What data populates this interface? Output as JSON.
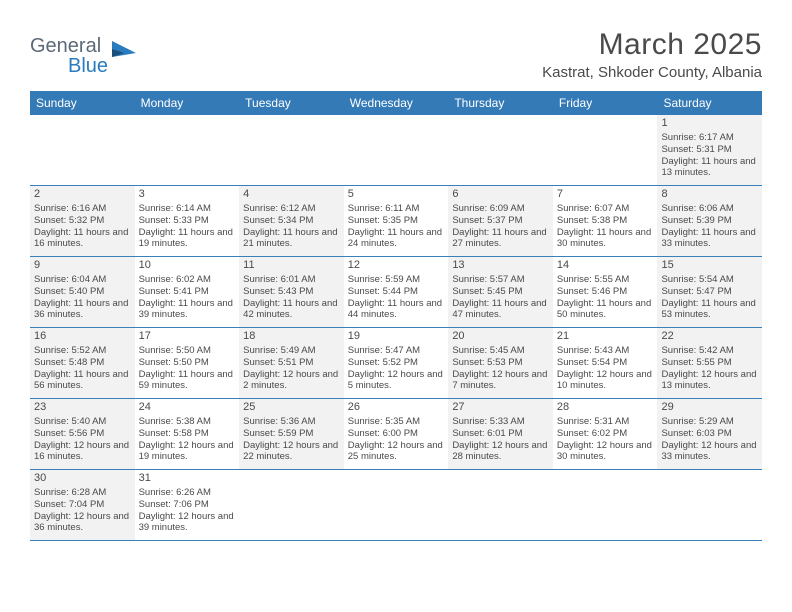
{
  "logo": {
    "text1": "General",
    "text2": "Blue"
  },
  "title": "March 2025",
  "location": "Kastrat, Shkoder County, Albania",
  "colors": {
    "header_bg": "#337ab7",
    "row_border": "#3a7fb8",
    "odd_cell": "#f2f2f2",
    "even_cell": "#ffffff",
    "text": "#4a4a4a",
    "logo_gray": "#5b6a78",
    "logo_blue": "#2a7bbf"
  },
  "weekdays": [
    "Sunday",
    "Monday",
    "Tuesday",
    "Wednesday",
    "Thursday",
    "Friday",
    "Saturday"
  ],
  "weeks": [
    [
      {
        "empty": true
      },
      {
        "empty": true
      },
      {
        "empty": true
      },
      {
        "empty": true
      },
      {
        "empty": true
      },
      {
        "empty": true
      },
      {
        "num": "1",
        "sunrise": "Sunrise: 6:17 AM",
        "sunset": "Sunset: 5:31 PM",
        "daylight": "Daylight: 11 hours and 13 minutes."
      }
    ],
    [
      {
        "num": "2",
        "sunrise": "Sunrise: 6:16 AM",
        "sunset": "Sunset: 5:32 PM",
        "daylight": "Daylight: 11 hours and 16 minutes."
      },
      {
        "num": "3",
        "sunrise": "Sunrise: 6:14 AM",
        "sunset": "Sunset: 5:33 PM",
        "daylight": "Daylight: 11 hours and 19 minutes."
      },
      {
        "num": "4",
        "sunrise": "Sunrise: 6:12 AM",
        "sunset": "Sunset: 5:34 PM",
        "daylight": "Daylight: 11 hours and 21 minutes."
      },
      {
        "num": "5",
        "sunrise": "Sunrise: 6:11 AM",
        "sunset": "Sunset: 5:35 PM",
        "daylight": "Daylight: 11 hours and 24 minutes."
      },
      {
        "num": "6",
        "sunrise": "Sunrise: 6:09 AM",
        "sunset": "Sunset: 5:37 PM",
        "daylight": "Daylight: 11 hours and 27 minutes."
      },
      {
        "num": "7",
        "sunrise": "Sunrise: 6:07 AM",
        "sunset": "Sunset: 5:38 PM",
        "daylight": "Daylight: 11 hours and 30 minutes."
      },
      {
        "num": "8",
        "sunrise": "Sunrise: 6:06 AM",
        "sunset": "Sunset: 5:39 PM",
        "daylight": "Daylight: 11 hours and 33 minutes."
      }
    ],
    [
      {
        "num": "9",
        "sunrise": "Sunrise: 6:04 AM",
        "sunset": "Sunset: 5:40 PM",
        "daylight": "Daylight: 11 hours and 36 minutes."
      },
      {
        "num": "10",
        "sunrise": "Sunrise: 6:02 AM",
        "sunset": "Sunset: 5:41 PM",
        "daylight": "Daylight: 11 hours and 39 minutes."
      },
      {
        "num": "11",
        "sunrise": "Sunrise: 6:01 AM",
        "sunset": "Sunset: 5:43 PM",
        "daylight": "Daylight: 11 hours and 42 minutes."
      },
      {
        "num": "12",
        "sunrise": "Sunrise: 5:59 AM",
        "sunset": "Sunset: 5:44 PM",
        "daylight": "Daylight: 11 hours and 44 minutes."
      },
      {
        "num": "13",
        "sunrise": "Sunrise: 5:57 AM",
        "sunset": "Sunset: 5:45 PM",
        "daylight": "Daylight: 11 hours and 47 minutes."
      },
      {
        "num": "14",
        "sunrise": "Sunrise: 5:55 AM",
        "sunset": "Sunset: 5:46 PM",
        "daylight": "Daylight: 11 hours and 50 minutes."
      },
      {
        "num": "15",
        "sunrise": "Sunrise: 5:54 AM",
        "sunset": "Sunset: 5:47 PM",
        "daylight": "Daylight: 11 hours and 53 minutes."
      }
    ],
    [
      {
        "num": "16",
        "sunrise": "Sunrise: 5:52 AM",
        "sunset": "Sunset: 5:48 PM",
        "daylight": "Daylight: 11 hours and 56 minutes."
      },
      {
        "num": "17",
        "sunrise": "Sunrise: 5:50 AM",
        "sunset": "Sunset: 5:50 PM",
        "daylight": "Daylight: 11 hours and 59 minutes."
      },
      {
        "num": "18",
        "sunrise": "Sunrise: 5:49 AM",
        "sunset": "Sunset: 5:51 PM",
        "daylight": "Daylight: 12 hours and 2 minutes."
      },
      {
        "num": "19",
        "sunrise": "Sunrise: 5:47 AM",
        "sunset": "Sunset: 5:52 PM",
        "daylight": "Daylight: 12 hours and 5 minutes."
      },
      {
        "num": "20",
        "sunrise": "Sunrise: 5:45 AM",
        "sunset": "Sunset: 5:53 PM",
        "daylight": "Daylight: 12 hours and 7 minutes."
      },
      {
        "num": "21",
        "sunrise": "Sunrise: 5:43 AM",
        "sunset": "Sunset: 5:54 PM",
        "daylight": "Daylight: 12 hours and 10 minutes."
      },
      {
        "num": "22",
        "sunrise": "Sunrise: 5:42 AM",
        "sunset": "Sunset: 5:55 PM",
        "daylight": "Daylight: 12 hours and 13 minutes."
      }
    ],
    [
      {
        "num": "23",
        "sunrise": "Sunrise: 5:40 AM",
        "sunset": "Sunset: 5:56 PM",
        "daylight": "Daylight: 12 hours and 16 minutes."
      },
      {
        "num": "24",
        "sunrise": "Sunrise: 5:38 AM",
        "sunset": "Sunset: 5:58 PM",
        "daylight": "Daylight: 12 hours and 19 minutes."
      },
      {
        "num": "25",
        "sunrise": "Sunrise: 5:36 AM",
        "sunset": "Sunset: 5:59 PM",
        "daylight": "Daylight: 12 hours and 22 minutes."
      },
      {
        "num": "26",
        "sunrise": "Sunrise: 5:35 AM",
        "sunset": "Sunset: 6:00 PM",
        "daylight": "Daylight: 12 hours and 25 minutes."
      },
      {
        "num": "27",
        "sunrise": "Sunrise: 5:33 AM",
        "sunset": "Sunset: 6:01 PM",
        "daylight": "Daylight: 12 hours and 28 minutes."
      },
      {
        "num": "28",
        "sunrise": "Sunrise: 5:31 AM",
        "sunset": "Sunset: 6:02 PM",
        "daylight": "Daylight: 12 hours and 30 minutes."
      },
      {
        "num": "29",
        "sunrise": "Sunrise: 5:29 AM",
        "sunset": "Sunset: 6:03 PM",
        "daylight": "Daylight: 12 hours and 33 minutes."
      }
    ],
    [
      {
        "num": "30",
        "sunrise": "Sunrise: 6:28 AM",
        "sunset": "Sunset: 7:04 PM",
        "daylight": "Daylight: 12 hours and 36 minutes."
      },
      {
        "num": "31",
        "sunrise": "Sunrise: 6:26 AM",
        "sunset": "Sunset: 7:06 PM",
        "daylight": "Daylight: 12 hours and 39 minutes."
      },
      {
        "empty": true
      },
      {
        "empty": true
      },
      {
        "empty": true
      },
      {
        "empty": true
      },
      {
        "empty": true
      }
    ]
  ]
}
